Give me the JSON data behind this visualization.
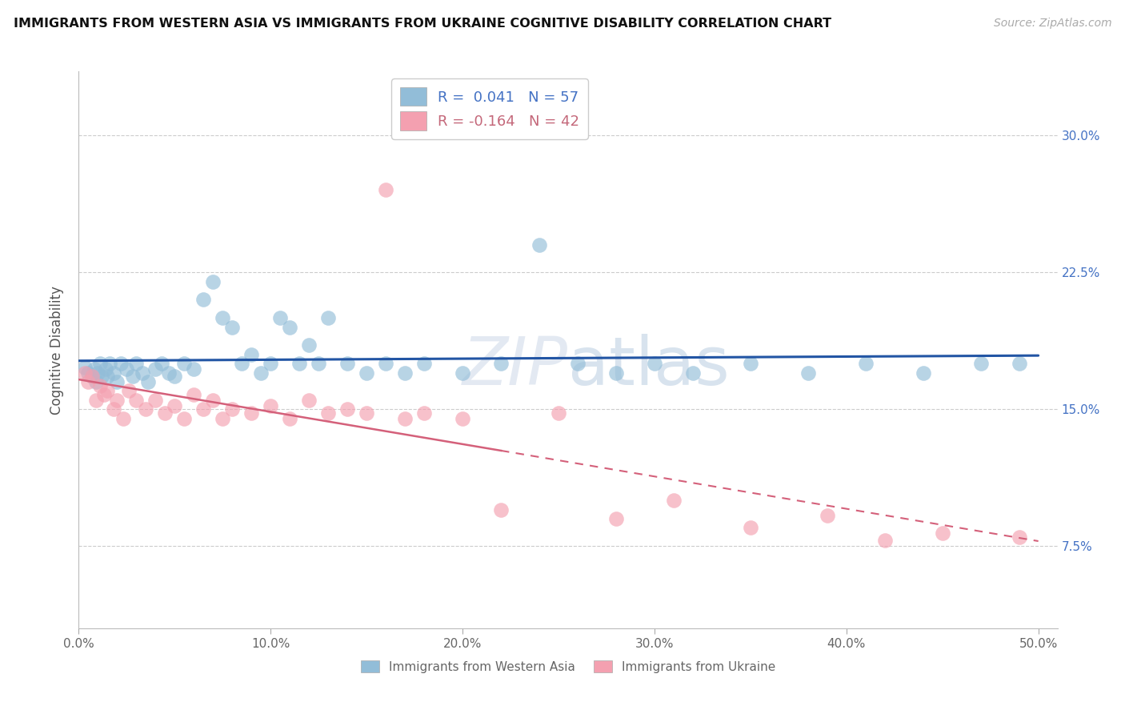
{
  "title": "IMMIGRANTS FROM WESTERN ASIA VS IMMIGRANTS FROM UKRAINE COGNITIVE DISABILITY CORRELATION CHART",
  "source": "Source: ZipAtlas.com",
  "ylabel": "Cognitive Disability",
  "ytick_values": [
    0.075,
    0.15,
    0.225,
    0.3
  ],
  "ytick_labels": [
    "7.5%",
    "15.0%",
    "22.5%",
    "30.0%"
  ],
  "xtick_values": [
    0.0,
    0.1,
    0.2,
    0.3,
    0.4,
    0.5
  ],
  "xtick_labels": [
    "0.0%",
    "10.0%",
    "20.0%",
    "30.0%",
    "40.0%",
    "50.0%"
  ],
  "xlim": [
    0.0,
    0.51
  ],
  "ylim": [
    0.03,
    0.335
  ],
  "legend1_label": "Immigrants from Western Asia",
  "legend2_label": "Immigrants from Ukraine",
  "R1": 0.041,
  "N1": 57,
  "R2": -0.164,
  "N2": 42,
  "color1": "#92BDD8",
  "color2": "#F4A0B0",
  "line1_color": "#2255A4",
  "line2_color": "#D4607A",
  "watermark_text": "ZIPatlas",
  "wa_x": [
    0.003,
    0.005,
    0.007,
    0.008,
    0.009,
    0.01,
    0.011,
    0.012,
    0.014,
    0.015,
    0.016,
    0.018,
    0.02,
    0.022,
    0.025,
    0.028,
    0.03,
    0.033,
    0.036,
    0.04,
    0.043,
    0.047,
    0.05,
    0.055,
    0.06,
    0.065,
    0.07,
    0.075,
    0.08,
    0.085,
    0.09,
    0.095,
    0.1,
    0.105,
    0.11,
    0.115,
    0.12,
    0.125,
    0.13,
    0.14,
    0.15,
    0.16,
    0.17,
    0.18,
    0.2,
    0.22,
    0.24,
    0.26,
    0.28,
    0.3,
    0.32,
    0.35,
    0.38,
    0.41,
    0.44,
    0.47,
    0.49
  ],
  "wa_y": [
    0.173,
    0.17,
    0.168,
    0.172,
    0.165,
    0.17,
    0.175,
    0.168,
    0.172,
    0.168,
    0.175,
    0.17,
    0.165,
    0.175,
    0.172,
    0.168,
    0.175,
    0.17,
    0.165,
    0.172,
    0.175,
    0.17,
    0.168,
    0.175,
    0.172,
    0.21,
    0.22,
    0.2,
    0.195,
    0.175,
    0.18,
    0.17,
    0.175,
    0.2,
    0.195,
    0.175,
    0.185,
    0.175,
    0.2,
    0.175,
    0.17,
    0.175,
    0.17,
    0.175,
    0.17,
    0.175,
    0.24,
    0.175,
    0.17,
    0.175,
    0.17,
    0.175,
    0.17,
    0.175,
    0.17,
    0.175,
    0.175
  ],
  "uk_x": [
    0.003,
    0.005,
    0.007,
    0.009,
    0.011,
    0.013,
    0.015,
    0.018,
    0.02,
    0.023,
    0.026,
    0.03,
    0.035,
    0.04,
    0.045,
    0.05,
    0.055,
    0.06,
    0.065,
    0.07,
    0.075,
    0.08,
    0.09,
    0.1,
    0.11,
    0.12,
    0.13,
    0.14,
    0.15,
    0.16,
    0.17,
    0.18,
    0.2,
    0.22,
    0.25,
    0.28,
    0.31,
    0.35,
    0.39,
    0.42,
    0.45,
    0.49
  ],
  "uk_y": [
    0.17,
    0.165,
    0.168,
    0.155,
    0.163,
    0.158,
    0.16,
    0.15,
    0.155,
    0.145,
    0.16,
    0.155,
    0.15,
    0.155,
    0.148,
    0.152,
    0.145,
    0.158,
    0.15,
    0.155,
    0.145,
    0.15,
    0.148,
    0.152,
    0.145,
    0.155,
    0.148,
    0.15,
    0.148,
    0.27,
    0.145,
    0.148,
    0.145,
    0.095,
    0.148,
    0.09,
    0.1,
    0.085,
    0.092,
    0.078,
    0.082,
    0.08
  ]
}
